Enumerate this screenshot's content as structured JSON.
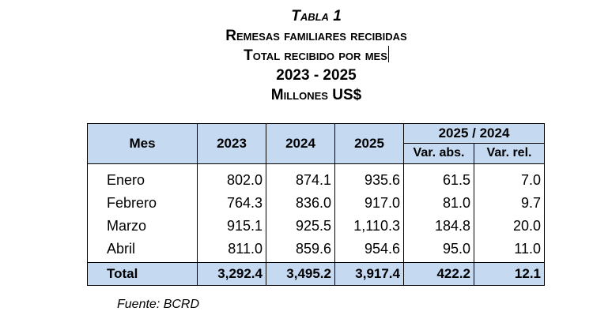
{
  "titles": {
    "caption": "Tabla 1",
    "line1": "Remesas familiares recibidas",
    "line2": "Total recibido por mes",
    "line3": "2023 - 2025",
    "line4": "Millones US$"
  },
  "table": {
    "headers": {
      "month": "Mes",
      "y2023": "2023",
      "y2024": "2024",
      "y2025": "2025",
      "group": "2025 / 2024",
      "var_abs": "Var. abs.",
      "var_rel": "Var. rel."
    },
    "rows": [
      {
        "month": "Enero",
        "v2023": "802.0",
        "v2024": "874.1",
        "v2025": "935.6",
        "abs": "61.5",
        "rel": "7.0"
      },
      {
        "month": "Febrero",
        "v2023": "764.3",
        "v2024": "836.0",
        "v2025": "917.0",
        "abs": "81.0",
        "rel": "9.7"
      },
      {
        "month": "Marzo",
        "v2023": "915.1",
        "v2024": "925.5",
        "v2025": "1,110.3",
        "abs": "184.8",
        "rel": "20.0"
      },
      {
        "month": "Abril",
        "v2023": "811.0",
        "v2024": "859.6",
        "v2025": "954.6",
        "abs": "95.0",
        "rel": "11.0"
      }
    ],
    "total": {
      "month": "Total",
      "v2023": "3,292.4",
      "v2024": "3,495.2",
      "v2025": "3,917.4",
      "abs": "422.2",
      "rel": "12.1"
    }
  },
  "source": "Fuente: BCRD"
}
